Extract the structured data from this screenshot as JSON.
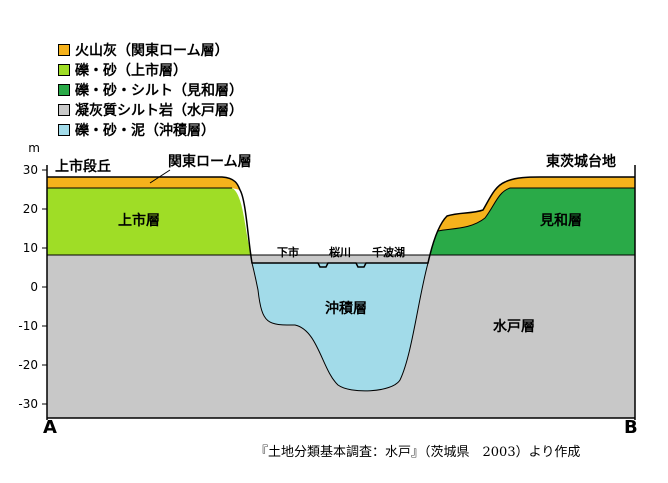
{
  "legend": {
    "items": [
      {
        "label": "火山灰（関東ローム層）",
        "color": "#f5b21c"
      },
      {
        "label": "礫・砂（上市層）",
        "color": "#9fdd26"
      },
      {
        "label": "礫・砂・シルト（見和層）",
        "color": "#2aaa48"
      },
      {
        "label": "凝灰質シルト岩（水戸層）",
        "color": "#c8c8c8"
      },
      {
        "label": "礫・砂・泥（沖積層）",
        "color": "#a2dbe9"
      }
    ]
  },
  "axis": {
    "unit": "m",
    "ticks": [
      "30",
      "20",
      "10",
      "0",
      "-10",
      "-20",
      "-30"
    ]
  },
  "labels": {
    "kamiichi_terrace": "上市段丘",
    "kanto_loam": "関東ローム層",
    "kamiichi_layer": "上市層",
    "shimoichi": "下市",
    "sakuragawa": "桜川",
    "senba_lake": "千波湖",
    "alluvium": "沖積層",
    "mito_layer": "水戸層",
    "higashi_ibaraki_plateau": "東茨城台地",
    "miwa_layer": "見和層"
  },
  "endpoints": {
    "a": "A",
    "b": "B"
  },
  "caption": "『土地分類基本調査：水戸』（茨城県　2003）より作成"
}
